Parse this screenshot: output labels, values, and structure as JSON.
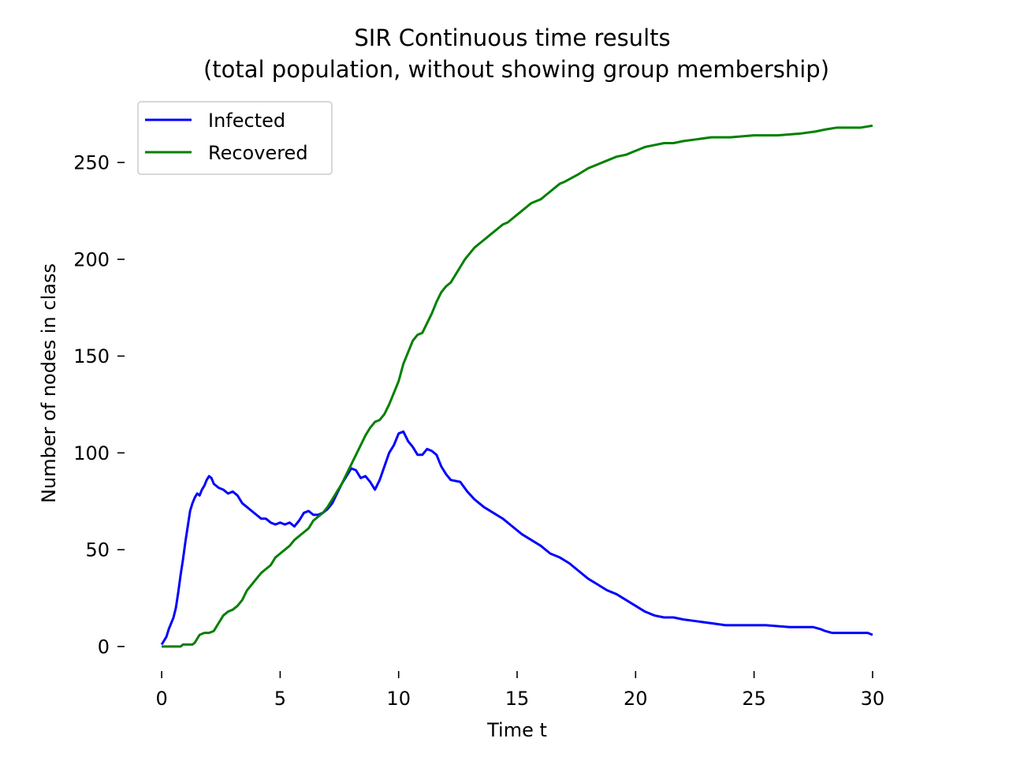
{
  "chart_data": {
    "type": "line",
    "title": "SIR Continuous time results",
    "subtitle": "(total population, without showing group membership)",
    "xlabel": "Time t",
    "ylabel": "Number of nodes in class",
    "xlim": [
      -1.5,
      31.5
    ],
    "ylim": [
      -13.5,
      283
    ],
    "x_ticks": [
      0,
      5,
      10,
      15,
      20,
      25,
      30
    ],
    "y_ticks": [
      0,
      50,
      100,
      150,
      200,
      250
    ],
    "grid": false,
    "legend_position": "top-left",
    "series": [
      {
        "name": "Infected",
        "color": "#0000ff",
        "points": [
          [
            0,
            1
          ],
          [
            0.1,
            3
          ],
          [
            0.2,
            5
          ],
          [
            0.3,
            9
          ],
          [
            0.4,
            12
          ],
          [
            0.5,
            15
          ],
          [
            0.6,
            20
          ],
          [
            0.7,
            28
          ],
          [
            0.8,
            37
          ],
          [
            0.9,
            45
          ],
          [
            1.0,
            54
          ],
          [
            1.1,
            62
          ],
          [
            1.2,
            70
          ],
          [
            1.3,
            74
          ],
          [
            1.4,
            77
          ],
          [
            1.5,
            79
          ],
          [
            1.6,
            78
          ],
          [
            1.7,
            81
          ],
          [
            1.8,
            83
          ],
          [
            1.9,
            86
          ],
          [
            2.0,
            88
          ],
          [
            2.1,
            87
          ],
          [
            2.2,
            84
          ],
          [
            2.4,
            82
          ],
          [
            2.6,
            81
          ],
          [
            2.8,
            79
          ],
          [
            3.0,
            80
          ],
          [
            3.2,
            78
          ],
          [
            3.4,
            74
          ],
          [
            3.6,
            72
          ],
          [
            3.8,
            70
          ],
          [
            4.0,
            68
          ],
          [
            4.2,
            66
          ],
          [
            4.4,
            66
          ],
          [
            4.6,
            64
          ],
          [
            4.8,
            63
          ],
          [
            5.0,
            64
          ],
          [
            5.2,
            63
          ],
          [
            5.4,
            64
          ],
          [
            5.6,
            62
          ],
          [
            5.8,
            65
          ],
          [
            6.0,
            69
          ],
          [
            6.2,
            70
          ],
          [
            6.4,
            68
          ],
          [
            6.6,
            68
          ],
          [
            6.8,
            69
          ],
          [
            7.0,
            71
          ],
          [
            7.2,
            74
          ],
          [
            7.4,
            79
          ],
          [
            7.6,
            84
          ],
          [
            7.8,
            88
          ],
          [
            8.0,
            92
          ],
          [
            8.2,
            91
          ],
          [
            8.4,
            87
          ],
          [
            8.6,
            88
          ],
          [
            8.8,
            85
          ],
          [
            9.0,
            81
          ],
          [
            9.2,
            86
          ],
          [
            9.4,
            93
          ],
          [
            9.6,
            100
          ],
          [
            9.8,
            104
          ],
          [
            10.0,
            110
          ],
          [
            10.2,
            111
          ],
          [
            10.4,
            106
          ],
          [
            10.6,
            103
          ],
          [
            10.8,
            99
          ],
          [
            11.0,
            99
          ],
          [
            11.2,
            102
          ],
          [
            11.4,
            101
          ],
          [
            11.6,
            99
          ],
          [
            11.8,
            93
          ],
          [
            12.0,
            89
          ],
          [
            12.2,
            86
          ],
          [
            12.6,
            85
          ],
          [
            12.9,
            80
          ],
          [
            13.2,
            76
          ],
          [
            13.6,
            72
          ],
          [
            14.0,
            69
          ],
          [
            14.4,
            66
          ],
          [
            14.8,
            62
          ],
          [
            15.2,
            58
          ],
          [
            15.6,
            55
          ],
          [
            16.0,
            52
          ],
          [
            16.4,
            48
          ],
          [
            16.8,
            46
          ],
          [
            17.2,
            43
          ],
          [
            17.6,
            39
          ],
          [
            18.0,
            35
          ],
          [
            18.4,
            32
          ],
          [
            18.8,
            29
          ],
          [
            19.2,
            27
          ],
          [
            19.6,
            24
          ],
          [
            20.0,
            21
          ],
          [
            20.4,
            18
          ],
          [
            20.8,
            16
          ],
          [
            21.2,
            15
          ],
          [
            21.6,
            15
          ],
          [
            22.0,
            14
          ],
          [
            22.6,
            13
          ],
          [
            23.2,
            12
          ],
          [
            23.8,
            11
          ],
          [
            24.5,
            11
          ],
          [
            25.5,
            11
          ],
          [
            26.5,
            10
          ],
          [
            27.5,
            10
          ],
          [
            27.8,
            9
          ],
          [
            28.0,
            8
          ],
          [
            28.3,
            7
          ],
          [
            29.0,
            7
          ],
          [
            29.8,
            7
          ],
          [
            30.0,
            6
          ]
        ]
      },
      {
        "name": "Recovered",
        "color": "#008000",
        "points": [
          [
            0,
            0
          ],
          [
            0.4,
            0
          ],
          [
            0.8,
            0
          ],
          [
            0.9,
            1
          ],
          [
            1.3,
            1
          ],
          [
            1.4,
            2
          ],
          [
            1.5,
            4
          ],
          [
            1.6,
            6
          ],
          [
            1.8,
            7
          ],
          [
            2.0,
            7
          ],
          [
            2.2,
            8
          ],
          [
            2.4,
            12
          ],
          [
            2.6,
            16
          ],
          [
            2.8,
            18
          ],
          [
            3.0,
            19
          ],
          [
            3.2,
            21
          ],
          [
            3.4,
            24
          ],
          [
            3.6,
            29
          ],
          [
            3.8,
            32
          ],
          [
            4.0,
            35
          ],
          [
            4.2,
            38
          ],
          [
            4.4,
            40
          ],
          [
            4.6,
            42
          ],
          [
            4.8,
            46
          ],
          [
            5.0,
            48
          ],
          [
            5.2,
            50
          ],
          [
            5.4,
            52
          ],
          [
            5.6,
            55
          ],
          [
            5.8,
            57
          ],
          [
            6.0,
            59
          ],
          [
            6.2,
            61
          ],
          [
            6.4,
            65
          ],
          [
            6.6,
            67
          ],
          [
            6.8,
            69
          ],
          [
            7.0,
            72
          ],
          [
            7.2,
            76
          ],
          [
            7.4,
            80
          ],
          [
            7.6,
            84
          ],
          [
            7.8,
            89
          ],
          [
            8.0,
            94
          ],
          [
            8.2,
            99
          ],
          [
            8.4,
            104
          ],
          [
            8.6,
            109
          ],
          [
            8.8,
            113
          ],
          [
            9.0,
            116
          ],
          [
            9.2,
            117
          ],
          [
            9.4,
            120
          ],
          [
            9.6,
            125
          ],
          [
            9.8,
            131
          ],
          [
            10.0,
            137
          ],
          [
            10.2,
            146
          ],
          [
            10.4,
            152
          ],
          [
            10.6,
            158
          ],
          [
            10.8,
            161
          ],
          [
            11.0,
            162
          ],
          [
            11.2,
            167
          ],
          [
            11.4,
            172
          ],
          [
            11.6,
            178
          ],
          [
            11.8,
            183
          ],
          [
            12.0,
            186
          ],
          [
            12.2,
            188
          ],
          [
            12.4,
            192
          ],
          [
            12.6,
            196
          ],
          [
            12.8,
            200
          ],
          [
            13.0,
            203
          ],
          [
            13.2,
            206
          ],
          [
            13.4,
            208
          ],
          [
            13.6,
            210
          ],
          [
            13.8,
            212
          ],
          [
            14.0,
            214
          ],
          [
            14.2,
            216
          ],
          [
            14.4,
            218
          ],
          [
            14.6,
            219
          ],
          [
            14.8,
            221
          ],
          [
            15.0,
            223
          ],
          [
            15.2,
            225
          ],
          [
            15.4,
            227
          ],
          [
            15.6,
            229
          ],
          [
            15.8,
            230
          ],
          [
            16.0,
            231
          ],
          [
            16.2,
            233
          ],
          [
            16.4,
            235
          ],
          [
            16.6,
            237
          ],
          [
            16.8,
            239
          ],
          [
            17.0,
            240
          ],
          [
            17.3,
            242
          ],
          [
            17.6,
            244
          ],
          [
            18.0,
            247
          ],
          [
            18.4,
            249
          ],
          [
            18.8,
            251
          ],
          [
            19.2,
            253
          ],
          [
            19.6,
            254
          ],
          [
            20.0,
            256
          ],
          [
            20.4,
            258
          ],
          [
            20.8,
            259
          ],
          [
            21.2,
            260
          ],
          [
            21.6,
            260
          ],
          [
            22.0,
            261
          ],
          [
            22.6,
            262
          ],
          [
            23.2,
            263
          ],
          [
            24.0,
            263
          ],
          [
            25.0,
            264
          ],
          [
            26.0,
            264
          ],
          [
            27.0,
            265
          ],
          [
            27.6,
            266
          ],
          [
            28.0,
            267
          ],
          [
            28.5,
            268
          ],
          [
            29.0,
            268
          ],
          [
            29.5,
            268
          ],
          [
            30.0,
            269
          ]
        ]
      }
    ]
  }
}
